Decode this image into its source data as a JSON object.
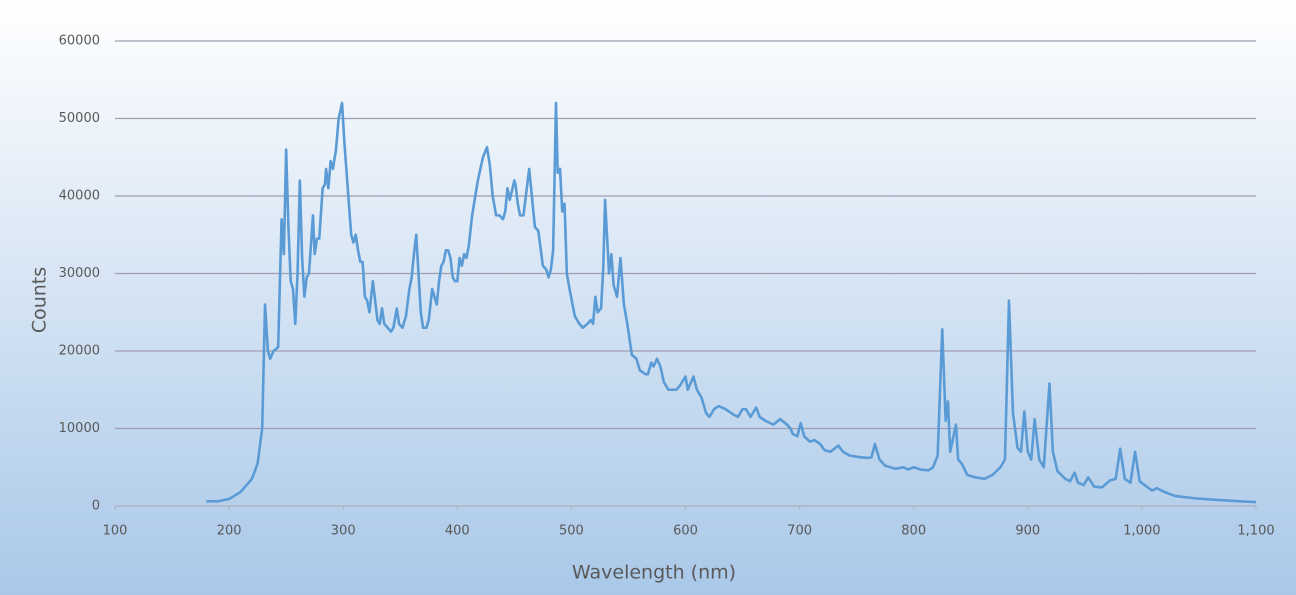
{
  "chart_data": {
    "type": "line",
    "x_label": "Wavelength (nm)",
    "y_label": "Counts",
    "color": "#5b9bd5",
    "grid": true,
    "xlim": [
      100,
      1100
    ],
    "xticks": [
      100,
      200,
      300,
      400,
      500,
      600,
      700,
      800,
      900,
      {
        "value": 1000,
        "label": "1,000"
      },
      {
        "value": 1100,
        "label": "1,100"
      }
    ],
    "ylim": [
      0,
      60000
    ],
    "yticks": [
      0,
      10000,
      20000,
      30000,
      40000,
      50000,
      60000
    ],
    "x": [
      180,
      190,
      200,
      210,
      220,
      225,
      229,
      231.5,
      234,
      236,
      239,
      243,
      246,
      248,
      250,
      252,
      254,
      256,
      258,
      260,
      262,
      264,
      266,
      268,
      270,
      273.5,
      275,
      277,
      279,
      282,
      284,
      285,
      287,
      289,
      291,
      293.7,
      296,
      299,
      301,
      303,
      305,
      307,
      309,
      311,
      313,
      315,
      317,
      319,
      321,
      323,
      326,
      328,
      330,
      332,
      334,
      336,
      339,
      342,
      344,
      347,
      349,
      352,
      355,
      358,
      360,
      362,
      364,
      366,
      368,
      370,
      373,
      375,
      378,
      380,
      382,
      384,
      386,
      388,
      390,
      392,
      394,
      396,
      398,
      400,
      402,
      404,
      406,
      408,
      410,
      413,
      418,
      422.5,
      426,
      428.5,
      431,
      434,
      437,
      440,
      442,
      444,
      446,
      450,
      451,
      453,
      455,
      458,
      463,
      468,
      471,
      475,
      478,
      480,
      482,
      484,
      486.5,
      488,
      490,
      492,
      494,
      496,
      499,
      503,
      507,
      510,
      514,
      517,
      519,
      521,
      523,
      526,
      528,
      529.5,
      533,
      535,
      537,
      540,
      543,
      546,
      549,
      553,
      557,
      560,
      565,
      567,
      570,
      572,
      575,
      578,
      581,
      585,
      592,
      595,
      600,
      602,
      607,
      610,
      614,
      618,
      621,
      625,
      629,
      635,
      642,
      646,
      650,
      653,
      657,
      662,
      665,
      670,
      677,
      683,
      689,
      692,
      694,
      698,
      701,
      704,
      709,
      713,
      718,
      722,
      727,
      734,
      738,
      744,
      753,
      760,
      763,
      766,
      770,
      775,
      784,
      791,
      795,
      800,
      806,
      813,
      817,
      821,
      825,
      828,
      830,
      832,
      837,
      839,
      842,
      847,
      854,
      862,
      869,
      876,
      880,
      883.5,
      887,
      891,
      894,
      897,
      900,
      903,
      906,
      910,
      914,
      919,
      922,
      926,
      933,
      937,
      941,
      944,
      949,
      953,
      958,
      965,
      972,
      977,
      981,
      985,
      990,
      994,
      998,
      1005,
      1009,
      1013,
      1020,
      1029,
      1046,
      1064,
      1086,
      1100
    ],
    "values": [
      600,
      600,
      900,
      1800,
      3500,
      5500,
      10000,
      26000,
      20000,
      19000,
      20000,
      20500,
      37000,
      32500,
      46000,
      36000,
      29000,
      28000,
      23500,
      30000,
      42000,
      32000,
      27000,
      29500,
      30000,
      37500,
      32500,
      34500,
      34500,
      41000,
      41500,
      43500,
      41000,
      44500,
      43500,
      46000,
      50000,
      52000,
      47000,
      43000,
      39000,
      35000,
      34000,
      35000,
      33000,
      31500,
      31500,
      27000,
      26500,
      25000,
      29000,
      26500,
      24000,
      23500,
      25500,
      23500,
      23000,
      22500,
      23000,
      25500,
      23500,
      23000,
      24500,
      28000,
      29500,
      32500,
      35000,
      30000,
      25000,
      23000,
      23000,
      24000,
      28000,
      27000,
      26000,
      29000,
      31000,
      31500,
      33000,
      33000,
      32000,
      29500,
      29000,
      29000,
      32000,
      31000,
      32500,
      32000,
      33500,
      37500,
      42000,
      45000,
      46300,
      44000,
      40000,
      37500,
      37500,
      37000,
      38000,
      41000,
      39500,
      42000,
      41500,
      39000,
      37500,
      37500,
      43500,
      36000,
      35500,
      31000,
      30500,
      29500,
      30500,
      33000,
      52000,
      43000,
      43500,
      38000,
      39000,
      30000,
      27500,
      24500,
      23500,
      23000,
      23500,
      24000,
      23500,
      27000,
      25000,
      25500,
      31000,
      39500,
      30000,
      32500,
      28500,
      27000,
      32000,
      26000,
      23500,
      19500,
      19000,
      17500,
      17000,
      17000,
      18500,
      18000,
      19000,
      18000,
      16000,
      15000,
      15000,
      15500,
      16700,
      15000,
      16700,
      15000,
      14000,
      12000,
      11500,
      12500,
      12900,
      12500,
      11800,
      11500,
      12500,
      12500,
      11500,
      12700,
      11500,
      11000,
      10500,
      11200,
      10500,
      10000,
      9300,
      9000,
      10700,
      9000,
      8300,
      8500,
      8000,
      7200,
      7000,
      7800,
      7000,
      6500,
      6300,
      6200,
      6300,
      8000,
      6000,
      5200,
      4800,
      5000,
      4700,
      5000,
      4700,
      4600,
      5000,
      6500,
      22800,
      11000,
      13500,
      7000,
      10500,
      6000,
      5500,
      4000,
      3700,
      3500,
      4000,
      5000,
      6000,
      26500,
      12000,
      7500,
      7000,
      12200,
      7000,
      6000,
      11200,
      6000,
      5000,
      15800,
      7000,
      4500,
      3500,
      3200,
      4300,
      3000,
      2700,
      3700,
      2500,
      2400,
      3300,
      3500,
      7400,
      3500,
      3000,
      7000,
      3200,
      2400,
      2000,
      2300,
      1800,
      1300,
      1000,
      800,
      600,
      500
    ]
  }
}
